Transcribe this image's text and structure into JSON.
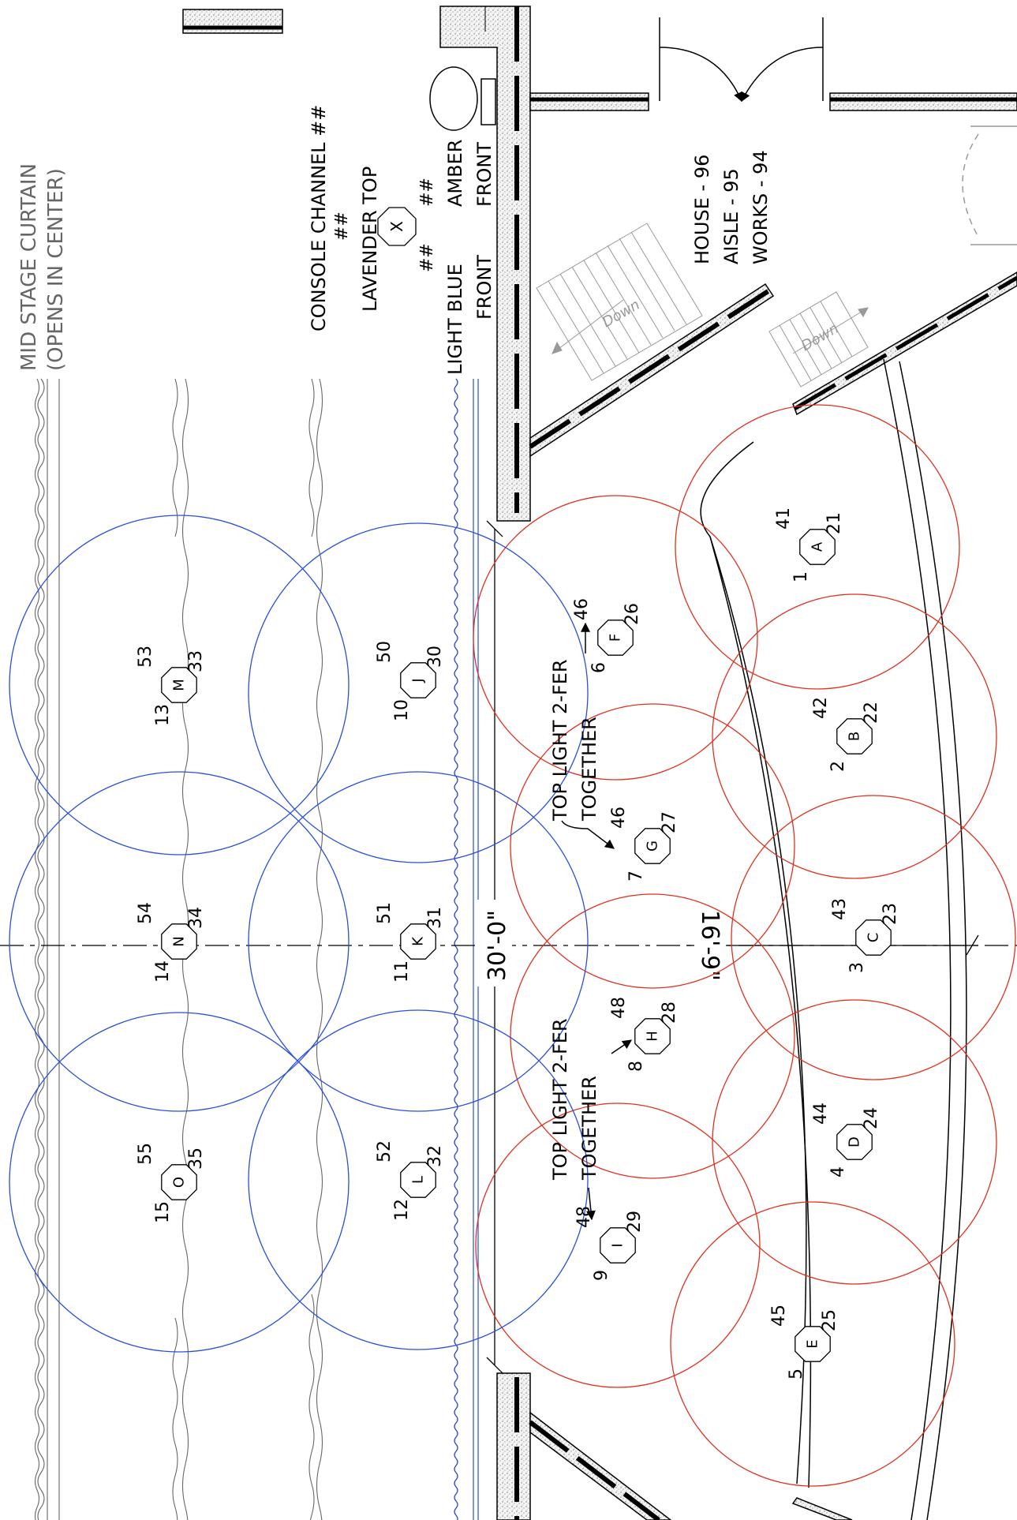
{
  "labels": {
    "mid_stage_curtain": "MID STAGE CURTAIN",
    "opens_in_center": "(OPENS IN CENTER)",
    "console_channel": "CONSOLE CHANNEL ##",
    "legend_top_num": "##",
    "lavender_top": "LAVENDER TOP",
    "legend_left_num": "##",
    "legend_right_num": "##",
    "legend_letter": "X",
    "light_blue_front": "LIGHT BLUE",
    "front_left": "FRONT",
    "amber_front": "AMBER",
    "front_right": "FRONT",
    "house": "HOUSE - 96",
    "aisle": "AISLE - 95",
    "works": "WORKS - 94",
    "down_left": "Down",
    "down_right": "Down",
    "dim_30": "30'-0\"",
    "dim_16": "16'-9\"",
    "note_top": "TOP LIGHT 2-FER",
    "note_top_2": "TOGETHER",
    "note_bottom": "TOP LIGHT 2-FER",
    "note_bottom_2": "TOGETHER"
  },
  "colors": {
    "blue": "#2a4fd8",
    "red": "#e0301e",
    "ink": "#000000",
    "curtain": "#555555"
  },
  "areas": [
    {
      "letter": "A",
      "top": "41",
      "right": "1",
      "bottom": "21",
      "gel": "amber"
    },
    {
      "letter": "B",
      "top": "42",
      "right": "2",
      "bottom": "22",
      "gel": "amber"
    },
    {
      "letter": "C",
      "top": "43",
      "right": "3",
      "bottom": "23",
      "gel": "amber"
    },
    {
      "letter": "D",
      "top": "44",
      "right": "4",
      "bottom": "24",
      "gel": "amber"
    },
    {
      "letter": "E",
      "top": "45",
      "right": "5",
      "bottom": "25",
      "gel": "amber"
    },
    {
      "letter": "F",
      "top": "46",
      "right": "6",
      "bottom": "26",
      "gel": "amber"
    },
    {
      "letter": "G",
      "top": "46",
      "right": "7",
      "bottom": "27",
      "gel": "amber"
    },
    {
      "letter": "H",
      "top": "48",
      "right": "8",
      "bottom": "28",
      "gel": "amber"
    },
    {
      "letter": "I",
      "top": "48",
      "right": "9",
      "bottom": "29",
      "gel": "amber"
    },
    {
      "letter": "J",
      "top": "50",
      "right": "10",
      "bottom": "30",
      "gel": "blue"
    },
    {
      "letter": "K",
      "top": "51",
      "right": "11",
      "bottom": "31",
      "gel": "blue"
    },
    {
      "letter": "L",
      "top": "52",
      "right": "12",
      "bottom": "32",
      "gel": "blue"
    },
    {
      "letter": "M",
      "top": "53",
      "right": "13",
      "bottom": "33",
      "gel": "blue"
    },
    {
      "letter": "N",
      "top": "54",
      "right": "14",
      "bottom": "34",
      "gel": "blue"
    },
    {
      "letter": "O",
      "top": "55",
      "right": "15",
      "bottom": "35",
      "gel": "blue"
    }
  ]
}
